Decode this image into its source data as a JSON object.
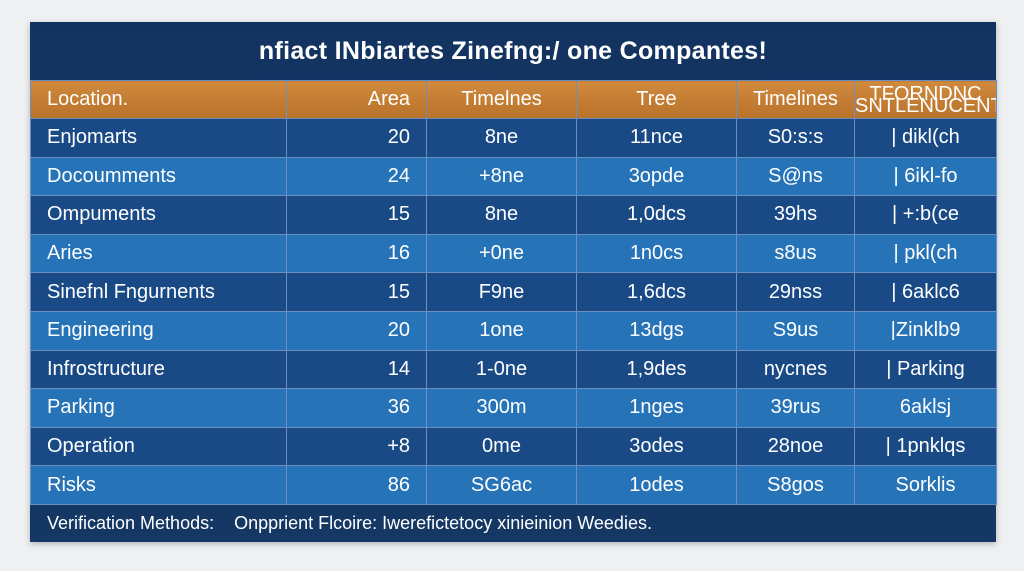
{
  "title": "nfiact INbiartes Zinefng:/ one Compantes!",
  "header": {
    "cols": [
      "Location.",
      "Area",
      "Timelnes",
      "Tree",
      "Timelines",
      "TFORNDNC SNTLENUCENTS"
    ]
  },
  "rows": [
    [
      "Enjomarts",
      "20",
      "8ne",
      "11nce",
      "S0:s:s",
      "| dikl(ch"
    ],
    [
      "Docoumments",
      "24",
      "+8ne",
      "3opde",
      "S@ns",
      "| 6ikl-fo"
    ],
    [
      "Ompuments",
      "15",
      "8ne",
      "1,0dcs",
      "39hs",
      "| +:b(ce"
    ],
    [
      "Aries",
      "16",
      "+0ne",
      "1n0cs",
      "s8us",
      "| pkl(ch"
    ],
    [
      "Sinefnl Fngurnents",
      "15",
      "F9ne",
      "1,6dcs",
      "29nss",
      "| 6aklc6"
    ],
    [
      "Engineering",
      "20",
      "1one",
      "13dgs",
      "S9us",
      "|Zinklb9"
    ],
    [
      "Infrostructure",
      "14",
      "1-0ne",
      "1,9des",
      "nycnes",
      "| Parking"
    ],
    [
      "Parking",
      "36",
      "300m",
      "1nges",
      "39rus",
      "6aklsj"
    ],
    [
      "Operation",
      "+8",
      "0me",
      "3odes",
      "28noe",
      "| 1pnklqs"
    ],
    [
      "Risks",
      "86",
      "SG6ac",
      "1odes",
      "S8gos",
      "Sorklis"
    ]
  ],
  "footer": {
    "label": "Verification Methods:",
    "text": "Onpprient Flcoire: Iwerefictetocy xinieinion Weedies."
  }
}
